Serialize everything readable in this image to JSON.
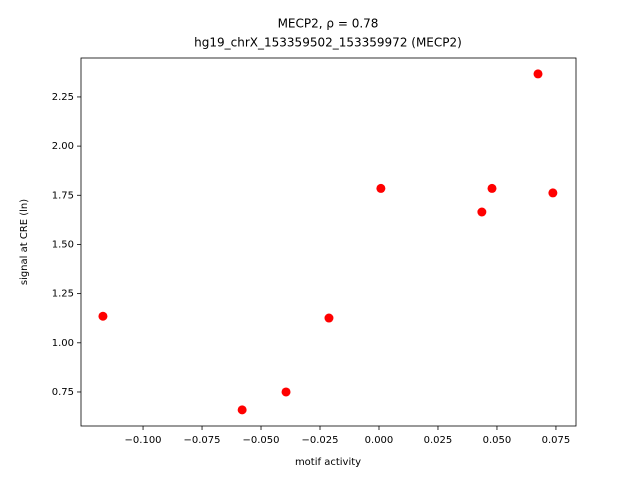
{
  "chart_data": {
    "type": "scatter",
    "title": "MECP2, ρ = 0.78",
    "subtitle": "hg19_chrX_153359502_153359972 (MECP2)",
    "x_label": "motif activity",
    "y_label": "signal at CRE (ln)",
    "color": "#ff0000",
    "x": [
      -0.117,
      -0.058,
      -0.0394,
      -0.0212,
      0.0008,
      0.0436,
      0.0479,
      0.0674,
      0.0737
    ],
    "values": [
      1.135,
      0.659,
      0.75,
      1.126,
      1.785,
      1.665,
      1.785,
      2.367,
      1.762
    ],
    "xlim": [
      -0.1263,
      0.0835
    ],
    "ylim": [
      0.577,
      2.448
    ],
    "xticks": [
      {
        "value": -0.1,
        "label": "−0.100"
      },
      {
        "value": -0.075,
        "label": "−0.075"
      },
      {
        "value": -0.05,
        "label": "−0.050"
      },
      {
        "value": -0.025,
        "label": "−0.025"
      },
      {
        "value": 0,
        "label": "0.000"
      },
      {
        "value": 0.025,
        "label": "0.025"
      },
      {
        "value": 0.05,
        "label": "0.050"
      },
      {
        "value": 0.075,
        "label": "0.075"
      }
    ],
    "yticks": [
      0.75,
      {
        "value": 1,
        "label": "1.00"
      },
      1.25,
      {
        "value": 1.5,
        "label": "1.50"
      },
      1.75,
      {
        "value": 2,
        "label": "2.00"
      },
      2.25
    ]
  }
}
